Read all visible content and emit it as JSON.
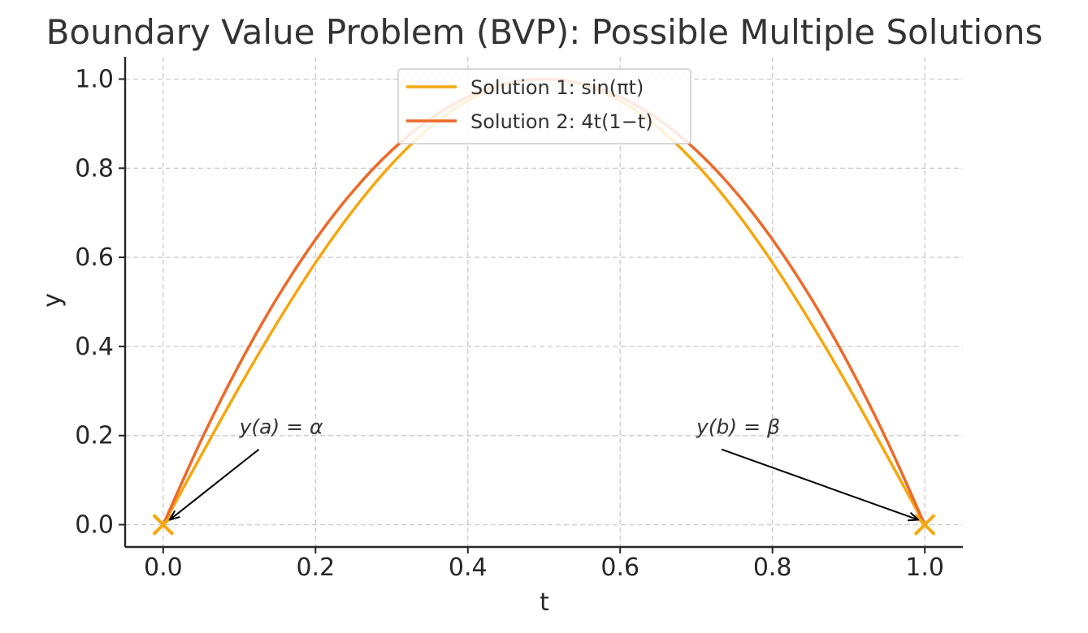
{
  "chart_data": {
    "type": "line",
    "title": "Boundary Value Problem (BVP): Possible Multiple Solutions",
    "xlabel": "t",
    "ylabel": "y",
    "xlim": [
      -0.05,
      1.05
    ],
    "ylim": [
      -0.05,
      1.05
    ],
    "x_ticks": [
      0.0,
      0.2,
      0.4,
      0.6,
      0.8,
      1.0
    ],
    "x_tick_labels": [
      "0.0",
      "0.2",
      "0.4",
      "0.6",
      "0.8",
      "1.0"
    ],
    "y_ticks": [
      0.0,
      0.2,
      0.4,
      0.6,
      0.8,
      1.0
    ],
    "y_tick_labels": [
      "0.0",
      "0.2",
      "0.4",
      "0.6",
      "0.8",
      "1.0"
    ],
    "grid": true,
    "legend_position": "top-center",
    "series": [
      {
        "name": "Solution 1: sin(πt)",
        "color": "#F5A70F",
        "x": [
          0.0,
          0.05,
          0.1,
          0.15,
          0.2,
          0.25,
          0.3,
          0.35,
          0.4,
          0.45,
          0.5,
          0.55,
          0.6,
          0.65,
          0.7,
          0.75,
          0.8,
          0.85,
          0.9,
          0.95,
          1.0
        ],
        "y": [
          0.0,
          0.156,
          0.309,
          0.454,
          0.588,
          0.707,
          0.809,
          0.891,
          0.951,
          0.988,
          1.0,
          0.988,
          0.951,
          0.891,
          0.809,
          0.707,
          0.588,
          0.454,
          0.309,
          0.156,
          0.0
        ]
      },
      {
        "name": "Solution 2: 4t(1−t)",
        "color": "#EC6A2A",
        "x": [
          0.0,
          0.05,
          0.1,
          0.15,
          0.2,
          0.25,
          0.3,
          0.35,
          0.4,
          0.45,
          0.5,
          0.55,
          0.6,
          0.65,
          0.7,
          0.75,
          0.8,
          0.85,
          0.9,
          0.95,
          1.0
        ],
        "y": [
          0.0,
          0.19,
          0.36,
          0.51,
          0.64,
          0.75,
          0.84,
          0.91,
          0.96,
          0.99,
          1.0,
          0.99,
          0.96,
          0.91,
          0.84,
          0.75,
          0.64,
          0.51,
          0.36,
          0.19,
          0.0
        ]
      }
    ],
    "boundary_points": {
      "color": "#F5A70F",
      "marker": "x",
      "points": [
        {
          "x": 0.0,
          "y": 0.0
        },
        {
          "x": 1.0,
          "y": 0.0
        }
      ]
    },
    "annotations": [
      {
        "text": "y(a) = α",
        "text_at": [
          0.1,
          0.2
        ],
        "point_at": [
          0.0,
          0.0
        ]
      },
      {
        "text": "y(b) = β",
        "text_at": [
          0.7,
          0.2
        ],
        "point_at": [
          1.0,
          0.0
        ]
      }
    ]
  }
}
